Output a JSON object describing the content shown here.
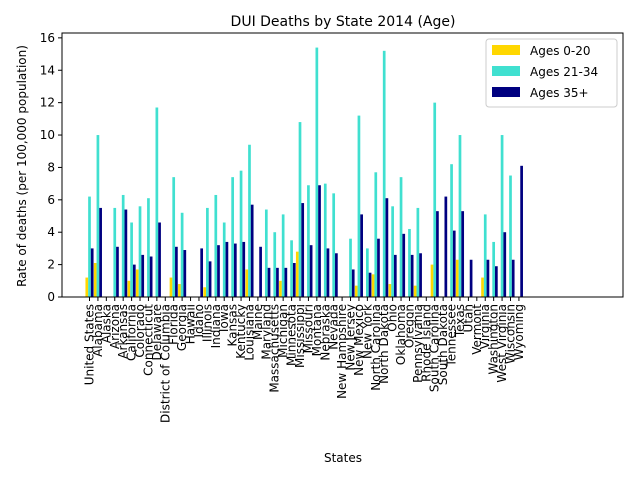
{
  "chart_data": {
    "type": "bar",
    "title": "DUI Deaths by State 2014 (Age)",
    "xlabel": "States",
    "ylabel": "Rate of deaths (per 100,000 population)",
    "ylim": [
      0,
      16.3
    ],
    "yticks": [
      0,
      2,
      4,
      6,
      8,
      10,
      12,
      14,
      16
    ],
    "legend_position": "top-right",
    "grid": false,
    "categories": [
      "United States",
      "Alabama",
      "Alaska",
      "Arizona",
      "Arkansas",
      "California",
      "Colorado",
      "Connecticut",
      "Delaware",
      "District of Columbia",
      "Florida",
      "Georgia",
      "Hawaii",
      "Idaho",
      "Illinois",
      "Indiana",
      "Iowa",
      "Kansas",
      "Kentucky",
      "Louisiana",
      "Maine",
      "Maryland",
      "Massachusetts",
      "Michigan",
      "Minnesota",
      "Mississippi",
      "Missouri",
      "Montana",
      "Nebraska",
      "Nevada",
      "New Hampshire",
      "New Jersey",
      "New Mexico",
      "New York",
      "North Carolina",
      "North Dakota",
      "Ohio",
      "Oklahoma",
      "Oregon",
      "Pennsylvania",
      "Rhode Island",
      "South Carolina",
      "South Dakota",
      "Tennessee",
      "Texas",
      "Utah",
      "Vermont",
      "Virginia",
      "Washington",
      "West Virginia",
      "Wisconsin",
      "Wyoming"
    ],
    "series": [
      {
        "name": "Ages 0-20",
        "color": "#ffd700",
        "values": [
          1.2,
          2.1,
          0,
          0,
          0,
          1.0,
          1.7,
          0,
          0,
          0,
          1.2,
          0.8,
          0,
          0,
          0.6,
          0,
          0,
          0,
          0,
          1.7,
          0,
          0,
          0,
          1.0,
          0,
          2.8,
          0,
          0,
          0,
          0,
          0,
          0,
          0.7,
          0,
          1.4,
          0,
          0.8,
          0,
          0,
          0.7,
          0,
          2.0,
          0,
          0,
          2.3,
          0,
          0,
          1.2,
          0,
          0,
          0,
          0
        ]
      },
      {
        "name": "Ages 21-34",
        "color": "#40e0d0",
        "values": [
          6.2,
          10.0,
          0,
          5.5,
          6.3,
          4.6,
          5.6,
          6.1,
          11.7,
          0,
          7.4,
          5.2,
          0,
          0,
          5.5,
          6.3,
          4.6,
          7.4,
          7.8,
          9.4,
          0,
          5.4,
          4.0,
          5.1,
          3.5,
          10.8,
          6.9,
          15.4,
          7.0,
          6.4,
          0,
          3.6,
          11.2,
          3.0,
          7.7,
          15.2,
          5.6,
          7.4,
          4.2,
          5.5,
          0,
          12.0,
          0,
          8.2,
          10.0,
          0,
          0,
          5.1,
          3.4,
          10.0,
          7.5,
          0
        ]
      },
      {
        "name": "Ages 35+",
        "color": "#000080",
        "values": [
          3.0,
          5.5,
          0,
          3.1,
          5.4,
          2.0,
          2.6,
          2.5,
          4.6,
          0,
          3.1,
          2.9,
          0,
          3.0,
          2.2,
          3.2,
          3.4,
          3.3,
          3.4,
          5.7,
          3.1,
          1.8,
          1.8,
          1.8,
          2.1,
          5.8,
          3.2,
          6.9,
          3.0,
          2.7,
          0,
          1.7,
          5.1,
          1.5,
          3.6,
          6.1,
          2.6,
          3.9,
          2.6,
          2.7,
          0,
          5.3,
          6.2,
          4.1,
          5.3,
          2.3,
          0,
          2.3,
          1.9,
          4.0,
          2.3,
          8.1
        ]
      }
    ]
  }
}
